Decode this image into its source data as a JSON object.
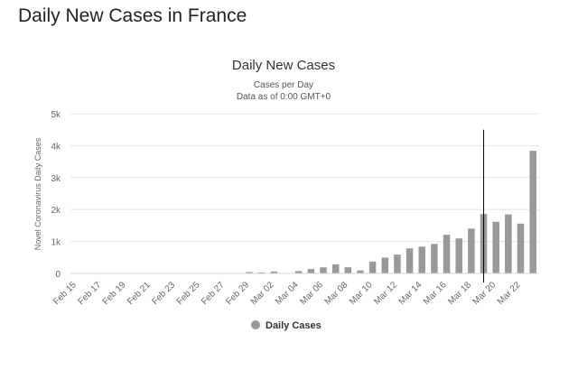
{
  "page": {
    "heading": "Daily New Cases in France"
  },
  "chart_data": {
    "type": "bar",
    "title": "Daily New Cases",
    "subtitle_1": "Cases per Day",
    "subtitle_2": "Data as of 0:00 GMT+0",
    "xlabel": "",
    "ylabel": "Novel Coronavirus Daily Cases",
    "ylim": [
      0,
      5000
    ],
    "y_ticks": [
      0,
      1000,
      2000,
      3000,
      4000,
      5000
    ],
    "y_tick_labels": [
      "0",
      "1k",
      "2k",
      "3k",
      "4k",
      "5k"
    ],
    "categories": [
      "Feb 15",
      "Feb 16",
      "Feb 17",
      "Feb 18",
      "Feb 19",
      "Feb 20",
      "Feb 21",
      "Feb 22",
      "Feb 23",
      "Feb 24",
      "Feb 25",
      "Feb 26",
      "Feb 27",
      "Feb 28",
      "Feb 29",
      "Mar 01",
      "Mar 02",
      "Mar 03",
      "Mar 04",
      "Mar 05",
      "Mar 06",
      "Mar 07",
      "Mar 08",
      "Mar 09",
      "Mar 10",
      "Mar 11",
      "Mar 12",
      "Mar 13",
      "Mar 14",
      "Mar 15",
      "Mar 16",
      "Mar 17",
      "Mar 18",
      "Mar 19",
      "Mar 20",
      "Mar 21",
      "Mar 22",
      "Mar 23"
    ],
    "x_tick_labels": [
      "Feb 15",
      "Feb 17",
      "Feb 19",
      "Feb 21",
      "Feb 23",
      "Feb 25",
      "Feb 27",
      "Feb 29",
      "Mar 02",
      "Mar 04",
      "Mar 06",
      "Mar 08",
      "Mar 10",
      "Mar 12",
      "Mar 14",
      "Mar 16",
      "Mar 18",
      "Mar 20",
      "Mar 22"
    ],
    "series": [
      {
        "name": "Daily Cases",
        "color": "#999999",
        "values": [
          0,
          0,
          0,
          0,
          0,
          0,
          0,
          0,
          0,
          0,
          0,
          0,
          0,
          0,
          43,
          30,
          61,
          4,
          73,
          138,
          190,
          286,
          193,
          93,
          372,
          495,
          591,
          785,
          838,
          924,
          1210,
          1097,
          1404,
          1861,
          1617,
          1847,
          1559,
          3838
        ]
      }
    ],
    "crosshair_category": "Mar 19",
    "legend": {
      "label": "Daily Cases",
      "position": "bottom-center",
      "marker_color": "#999999"
    },
    "grid": true
  }
}
